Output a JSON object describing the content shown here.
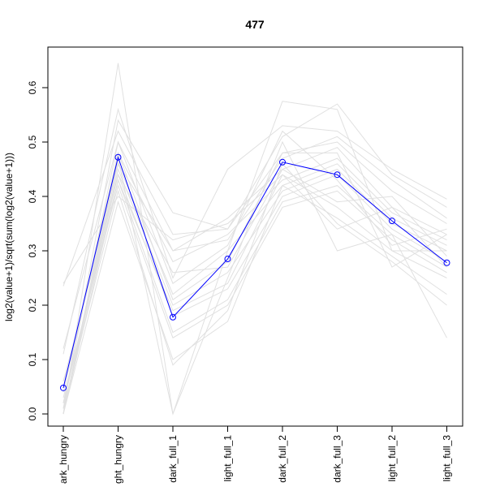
{
  "chart_data": {
    "type": "line",
    "title": "477",
    "xlabel": "",
    "ylabel": "log2(value+1)/sqrt(sum(log2(value+1)))",
    "categories": [
      "dark_hungry",
      "light_hungry",
      "dark_full_1",
      "light_full_1",
      "dark_full_2",
      "dark_full_3",
      "light_full_2",
      "light_full_3"
    ],
    "category_labels_visible": [
      "ark_hungry",
      "ght_hungry",
      "dark_full_1",
      "light_full_1",
      "dark_full_2",
      "dark_full_3",
      "light_full_2",
      "light_full_3"
    ],
    "yticks": [
      "0.0",
      "0.1",
      "0.2",
      "0.3",
      "0.4",
      "0.5",
      "0.6"
    ],
    "ylim": [
      -0.02,
      0.675
    ],
    "grid": false,
    "legend": "none",
    "highlight": {
      "values": [
        0.048,
        0.472,
        0.178,
        0.285,
        0.463,
        0.44,
        0.355,
        0.278
      ],
      "color": "#0000ff",
      "marker": "open-circle"
    },
    "background_color": "#e0e0e0",
    "background_series": [
      [
        0.0,
        0.645,
        0.0,
        0.3,
        0.575,
        0.56,
        0.3,
        0.3
      ],
      [
        0.11,
        0.56,
        0.25,
        0.45,
        0.53,
        0.52,
        0.45,
        0.395
      ],
      [
        0.235,
        0.52,
        0.33,
        0.34,
        0.51,
        0.57,
        0.44,
        0.38
      ],
      [
        0.01,
        0.54,
        0.37,
        0.34,
        0.48,
        0.5,
        0.41,
        0.35
      ],
      [
        0.02,
        0.5,
        0.3,
        0.36,
        0.45,
        0.49,
        0.38,
        0.33
      ],
      [
        0.04,
        0.48,
        0.28,
        0.33,
        0.43,
        0.47,
        0.37,
        0.32
      ],
      [
        0.05,
        0.46,
        0.22,
        0.3,
        0.42,
        0.46,
        0.36,
        0.31
      ],
      [
        0.0,
        0.45,
        0.2,
        0.26,
        0.41,
        0.45,
        0.35,
        0.3
      ],
      [
        0.06,
        0.44,
        0.18,
        0.23,
        0.4,
        0.44,
        0.34,
        0.28
      ],
      [
        0.02,
        0.43,
        0.15,
        0.21,
        0.39,
        0.42,
        0.33,
        0.27
      ],
      [
        0.03,
        0.42,
        0.14,
        0.2,
        0.38,
        0.41,
        0.32,
        0.26
      ],
      [
        0.24,
        0.4,
        0.32,
        0.35,
        0.44,
        0.38,
        0.3,
        0.25
      ],
      [
        0.0,
        0.39,
        0.1,
        0.17,
        0.42,
        0.36,
        0.29,
        0.22
      ],
      [
        0.01,
        0.41,
        0.09,
        0.19,
        0.46,
        0.35,
        0.28,
        0.2
      ],
      [
        0.0,
        0.47,
        0.0,
        0.25,
        0.5,
        0.3,
        0.33,
        0.14
      ],
      [
        0.12,
        0.5,
        0.24,
        0.31,
        0.52,
        0.43,
        0.31,
        0.34
      ],
      [
        0.0,
        0.48,
        0.21,
        0.28,
        0.48,
        0.48,
        0.27,
        0.33
      ],
      [
        0.0,
        0.46,
        0.3,
        0.32,
        0.47,
        0.51,
        0.43,
        0.36
      ],
      [
        0.02,
        0.44,
        0.26,
        0.27,
        0.45,
        0.39,
        0.4,
        0.29
      ],
      [
        0.0,
        0.43,
        0.19,
        0.24,
        0.44,
        0.34,
        0.38,
        0.27
      ]
    ]
  }
}
